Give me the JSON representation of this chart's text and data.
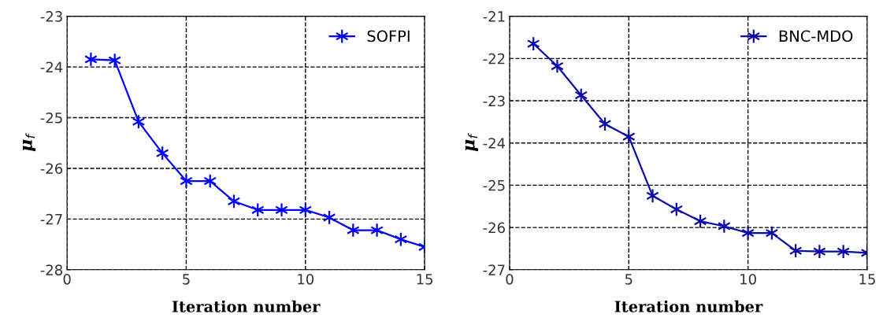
{
  "chart_data": [
    {
      "type": "line",
      "xlabel": "Iteration number",
      "ylabel": "μ$_{f}$",
      "x": [
        1,
        2,
        3,
        4,
        5,
        6,
        7,
        8,
        9,
        10,
        11,
        12,
        13,
        14,
        15
      ],
      "series": [
        {
          "name": "SOFPI",
          "color": "#0000ff",
          "values": [
            -23.85,
            -23.87,
            -25.08,
            -25.7,
            -26.25,
            -26.25,
            -26.65,
            -26.82,
            -26.82,
            -26.82,
            -26.97,
            -27.22,
            -27.22,
            -27.4,
            -27.55
          ]
        }
      ],
      "xlim": [
        0,
        15
      ],
      "xticks": [
        0,
        5,
        10,
        15
      ],
      "ylim": [
        -28,
        -23
      ],
      "yticks": [
        -28,
        -27,
        -26,
        -25,
        -24,
        -23
      ],
      "grid": true,
      "legend": "top right",
      "marker": "cross",
      "line_style": "solid"
    },
    {
      "type": "line",
      "xlabel": "Iteration number",
      "ylabel": "μ$_{f}$",
      "x": [
        1,
        2,
        3,
        4,
        5,
        6,
        7,
        8,
        9,
        10,
        11,
        12,
        13,
        14,
        15
      ],
      "series": [
        {
          "name": "BNC-MDO",
          "color": "#0a0aa8",
          "values": [
            -21.65,
            -22.18,
            -22.87,
            -23.55,
            -23.85,
            -25.25,
            -25.57,
            -25.85,
            -25.97,
            -26.13,
            -26.13,
            -26.55,
            -26.57,
            -26.57,
            -26.6
          ]
        }
      ],
      "xlim": [
        0,
        15
      ],
      "xticks": [
        0,
        5,
        10,
        15
      ],
      "ylim": [
        -27,
        -21
      ],
      "yticks": [
        -27,
        -26,
        -25,
        -24,
        -23,
        -22,
        -21
      ],
      "grid": true,
      "legend": "top right",
      "marker": "cross",
      "line_style": "solid"
    }
  ]
}
